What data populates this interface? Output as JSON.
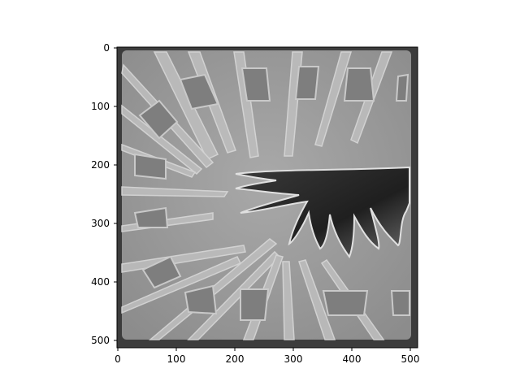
{
  "figure": {
    "image_description_hidden": "",
    "xaxis": {
      "ticks": [
        0,
        100,
        200,
        300,
        400,
        500
      ],
      "range": [
        0,
        511
      ]
    },
    "yaxis": {
      "ticks": [
        0,
        100,
        200,
        300,
        400,
        500
      ],
      "range": [
        0,
        511
      ],
      "inverted": true
    }
  }
}
